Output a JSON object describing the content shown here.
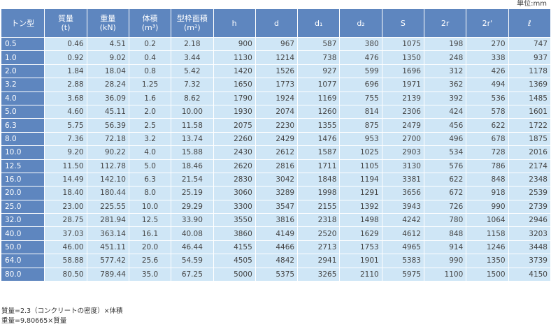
{
  "unit_label": "単位:mm",
  "headers": [
    {
      "label": "トン型",
      "sub": ""
    },
    {
      "label": "質量",
      "sub": "(t)"
    },
    {
      "label": "重量",
      "sub": "(kN)"
    },
    {
      "label": "体積",
      "sub": "(m³)"
    },
    {
      "label": "型枠面積",
      "sub": "(m²)"
    },
    {
      "label": "h",
      "sub": ""
    },
    {
      "label": "d",
      "sub": ""
    },
    {
      "label": "d₁",
      "sub": ""
    },
    {
      "label": "d₂",
      "sub": ""
    },
    {
      "label": "S",
      "sub": ""
    },
    {
      "label": "2r",
      "sub": ""
    },
    {
      "label": "2r'",
      "sub": ""
    },
    {
      "label": "ℓ",
      "sub": ""
    }
  ],
  "rows": [
    [
      "0.5",
      "0.46",
      "4.51",
      "0.2",
      "2.18",
      "900",
      "967",
      "587",
      "380",
      "1075",
      "198",
      "270",
      "747"
    ],
    [
      "1.0",
      "0.92",
      "9.02",
      "0.4",
      "3.44",
      "1130",
      "1214",
      "738",
      "476",
      "1350",
      "248",
      "338",
      "937"
    ],
    [
      "2.0",
      "1.84",
      "18.04",
      "0.8",
      "5.42",
      "1420",
      "1526",
      "927",
      "599",
      "1696",
      "312",
      "426",
      "1178"
    ],
    [
      "3.2",
      "2.88",
      "28.24",
      "1.25",
      "7.32",
      "1650",
      "1773",
      "1077",
      "696",
      "1971",
      "362",
      "494",
      "1369"
    ],
    [
      "4.0",
      "3.68",
      "36.09",
      "1.6",
      "8.62",
      "1790",
      "1924",
      "1169",
      "755",
      "2139",
      "392",
      "536",
      "1485"
    ],
    [
      "5.0",
      "4.60",
      "45.11",
      "2.0",
      "10.00",
      "1930",
      "2074",
      "1260",
      "814",
      "2306",
      "424",
      "578",
      "1601"
    ],
    [
      "6.3",
      "5.75",
      "56.39",
      "2.5",
      "11.58",
      "2075",
      "2230",
      "1355",
      "875",
      "2479",
      "456",
      "622",
      "1722"
    ],
    [
      "8.0",
      "7.36",
      "72.18",
      "3.2",
      "13.74",
      "2260",
      "2429",
      "1476",
      "953",
      "2700",
      "496",
      "678",
      "1875"
    ],
    [
      "10.0",
      "9.20",
      "90.22",
      "4.0",
      "15.88",
      "2430",
      "2612",
      "1587",
      "1025",
      "2903",
      "534",
      "728",
      "2016"
    ],
    [
      "12.5",
      "11.50",
      "112.78",
      "5.0",
      "18.46",
      "2620",
      "2816",
      "1711",
      "1105",
      "3130",
      "576",
      "786",
      "2174"
    ],
    [
      "16.0",
      "14.49",
      "142.10",
      "6.3",
      "21.54",
      "2830",
      "3042",
      "1848",
      "1194",
      "3381",
      "622",
      "848",
      "2348"
    ],
    [
      "20.0",
      "18.40",
      "180.44",
      "8.0",
      "25.19",
      "3060",
      "3289",
      "1998",
      "1291",
      "3656",
      "672",
      "918",
      "2539"
    ],
    [
      "25.0",
      "23.00",
      "225.55",
      "10.0",
      "29.29",
      "3300",
      "3547",
      "2155",
      "1392",
      "3943",
      "726",
      "990",
      "2739"
    ],
    [
      "32.0",
      "28.75",
      "281.94",
      "12.5",
      "33.90",
      "3550",
      "3816",
      "2318",
      "1498",
      "4242",
      "780",
      "1064",
      "2946"
    ],
    [
      "40.0",
      "37.03",
      "363.14",
      "16.1",
      "40.08",
      "3860",
      "4149",
      "2520",
      "1629",
      "4612",
      "848",
      "1158",
      "3203"
    ],
    [
      "50.0",
      "46.00",
      "451.11",
      "20.0",
      "46.44",
      "4155",
      "4466",
      "2713",
      "1753",
      "4965",
      "914",
      "1246",
      "3448"
    ],
    [
      "64.0",
      "58.88",
      "577.42",
      "25.6",
      "54.59",
      "4505",
      "4842",
      "2941",
      "1901",
      "5383",
      "990",
      "1350",
      "3739"
    ],
    [
      "80.0",
      "80.50",
      "789.44",
      "35.0",
      "67.25",
      "5000",
      "5375",
      "3265",
      "2110",
      "5975",
      "1100",
      "1500",
      "4150"
    ]
  ],
  "notes": [
    "質量=2.3（コンクリートの密度）×体積",
    "重量=9.80665×質量"
  ],
  "colors": {
    "header_bg": "#5e86bf",
    "cell_bg": "#cfe6f6",
    "header_text": "#ffffff"
  }
}
